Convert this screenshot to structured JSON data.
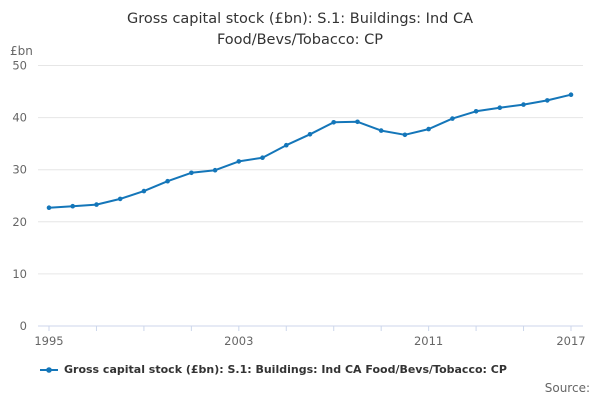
{
  "chart_data": {
    "type": "line",
    "title": "Gross capital stock (£bn): S.1: Buildings: Ind CA Food/Bevs/Tobacco: CP",
    "title_lines": {
      "0": "Gross capital stock (£bn): S.1: Buildings: Ind CA",
      "1": "Food/Bevs/Tobacco: CP"
    },
    "ylabel": "£bn",
    "xlabel": "",
    "series_name": "Gross capital stock (£bn): S.1: Buildings: Ind CA Food/Bevs/Tobacco: CP",
    "x": [
      1995,
      1996,
      1997,
      1998,
      1999,
      2000,
      2001,
      2002,
      2003,
      2004,
      2005,
      2006,
      2007,
      2008,
      2009,
      2010,
      2011,
      2012,
      2013,
      2014,
      2015,
      2016,
      2017
    ],
    "values": [
      22.7,
      23.0,
      23.3,
      24.4,
      25.9,
      27.8,
      29.4,
      29.9,
      31.6,
      32.3,
      34.7,
      36.8,
      39.1,
      39.2,
      37.5,
      36.7,
      37.8,
      39.8,
      41.2,
      41.9,
      42.5,
      43.3,
      44.4
    ],
    "ylim": [
      0,
      50
    ],
    "y_ticks": [
      0,
      10,
      20,
      30,
      40,
      50
    ],
    "x_tick_interval": 2,
    "x_labeled_ticks": [
      1995,
      2003,
      2011,
      2017
    ],
    "grid": "horizontal",
    "legend_position": "bottom-left",
    "marker": "dot"
  },
  "footer": {
    "source_label": "Source:"
  },
  "colors": {
    "line": "#1476b9",
    "gridline": "#e6e6e6",
    "axis": "#ccd6eb",
    "tick_text": "#666666",
    "title_text": "#333333",
    "legend_text": "#333333",
    "source_text": "#666666",
    "background": "#ffffff"
  }
}
